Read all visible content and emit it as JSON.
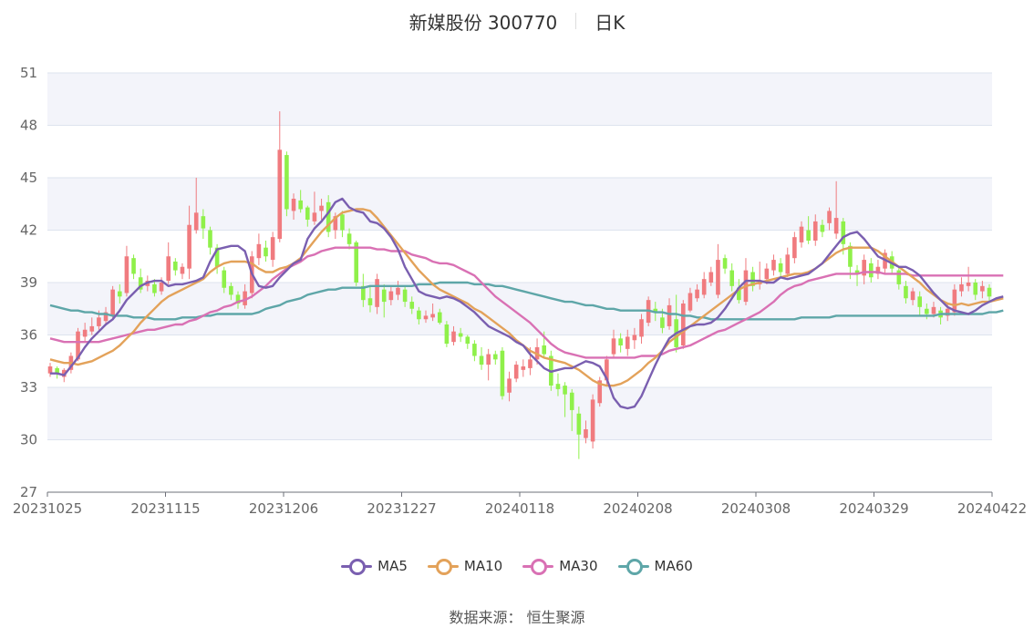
{
  "title": "新媒股份 300770",
  "subtitle": "日K",
  "source_label": "数据来源： 恒生聚源",
  "colors": {
    "up": "#f07b7f",
    "down": "#8ff04a",
    "MA5": "#7a5fb0",
    "MA10": "#e3a25a",
    "MA30": "#d971b4",
    "MA60": "#5ea6a8",
    "band": "#f3f4fa",
    "grid": "#dde3ee"
  },
  "chart_data": {
    "type": "candlestick",
    "y_ticks": [
      "51",
      "48",
      "45",
      "42",
      "39",
      "36",
      "33",
      "30",
      "27"
    ],
    "ylim": [
      27,
      51
    ],
    "x_tick_labels": [
      "20231025",
      "20231115",
      "20231206",
      "20231227",
      "20240118",
      "20240208",
      "20240308",
      "20240329",
      "20240422"
    ],
    "legend": [
      "MA5",
      "MA10",
      "MA30",
      "MA60"
    ],
    "candles": [
      [
        33.8,
        34.2,
        34.4,
        33.6
      ],
      [
        34.1,
        33.8,
        34.2,
        33.5
      ],
      [
        33.6,
        34.0,
        34.1,
        33.3
      ],
      [
        34.0,
        34.8,
        35.0,
        33.8
      ],
      [
        34.6,
        36.2,
        36.4,
        34.5
      ],
      [
        35.9,
        36.3,
        36.7,
        35.6
      ],
      [
        36.2,
        36.5,
        37.0,
        36.0
      ],
      [
        36.5,
        37.0,
        37.4,
        36.3
      ],
      [
        36.8,
        37.3,
        37.6,
        36.6
      ],
      [
        37.1,
        38.6,
        38.8,
        36.9
      ],
      [
        38.5,
        38.2,
        38.9,
        37.8
      ],
      [
        38.4,
        40.5,
        41.1,
        38.2
      ],
      [
        40.4,
        39.5,
        40.6,
        39.2
      ],
      [
        39.3,
        38.6,
        39.8,
        38.4
      ],
      [
        38.8,
        39.1,
        39.4,
        38.5
      ],
      [
        38.9,
        38.4,
        39.2,
        38.2
      ],
      [
        38.5,
        39.0,
        39.3,
        38.3
      ],
      [
        39.1,
        40.5,
        41.3,
        38.9
      ],
      [
        40.2,
        39.7,
        40.4,
        39.4
      ],
      [
        39.5,
        39.9,
        40.1,
        39.2
      ],
      [
        39.8,
        42.3,
        43.4,
        39.2
      ],
      [
        42.0,
        43.0,
        45.0,
        41.8
      ],
      [
        42.8,
        42.1,
        43.2,
        41.5
      ],
      [
        42.0,
        41.0,
        42.2,
        40.6
      ],
      [
        41.0,
        39.9,
        41.2,
        39.5
      ],
      [
        39.7,
        38.7,
        39.9,
        38.4
      ],
      [
        38.8,
        38.3,
        39.0,
        38.0
      ],
      [
        38.3,
        37.8,
        38.5,
        37.5
      ],
      [
        37.7,
        38.5,
        38.9,
        37.5
      ],
      [
        38.4,
        40.5,
        40.8,
        38.1
      ],
      [
        40.4,
        41.2,
        41.8,
        40.0
      ],
      [
        41.0,
        40.5,
        41.4,
        40.2
      ],
      [
        40.3,
        41.6,
        41.9,
        39.9
      ],
      [
        41.5,
        46.6,
        48.8,
        41.3
      ],
      [
        46.3,
        43.2,
        46.5,
        42.8
      ],
      [
        43.1,
        43.8,
        44.1,
        42.6
      ],
      [
        43.7,
        43.2,
        44.3,
        43.0
      ],
      [
        43.3,
        42.6,
        43.4,
        42.2
      ],
      [
        42.5,
        43.0,
        44.2,
        42.3
      ],
      [
        43.1,
        43.4,
        43.8,
        42.6
      ],
      [
        43.6,
        41.9,
        44.0,
        41.6
      ],
      [
        42.0,
        42.8,
        43.0,
        41.5
      ],
      [
        42.9,
        42.0,
        43.1,
        41.6
      ],
      [
        41.8,
        41.2,
        42.1,
        40.9
      ],
      [
        41.3,
        39.0,
        41.4,
        38.8
      ],
      [
        38.8,
        38.0,
        39.5,
        37.6
      ],
      [
        38.1,
        37.7,
        38.8,
        37.3
      ],
      [
        37.6,
        39.2,
        39.5,
        37.2
      ],
      [
        38.6,
        37.9,
        38.9,
        37.0
      ],
      [
        38.0,
        38.5,
        38.8,
        37.7
      ],
      [
        38.3,
        38.7,
        39.1,
        38.0
      ],
      [
        38.6,
        37.9,
        38.8,
        37.6
      ],
      [
        37.9,
        37.5,
        38.2,
        37.2
      ],
      [
        37.4,
        36.9,
        37.6,
        36.6
      ],
      [
        36.9,
        37.1,
        37.4,
        36.7
      ],
      [
        37.0,
        37.2,
        37.8,
        36.8
      ],
      [
        37.3,
        36.7,
        37.5,
        36.6
      ],
      [
        36.6,
        35.5,
        36.8,
        35.3
      ],
      [
        35.6,
        36.2,
        36.5,
        35.4
      ],
      [
        36.1,
        35.9,
        36.4,
        35.6
      ],
      [
        35.9,
        35.5,
        36.0,
        35.2
      ],
      [
        35.5,
        34.8,
        35.7,
        34.5
      ],
      [
        34.8,
        34.3,
        35.3,
        34.0
      ],
      [
        34.3,
        34.9,
        35.2,
        33.4
      ],
      [
        34.9,
        34.6,
        35.1,
        34.3
      ],
      [
        35.1,
        32.5,
        35.3,
        32.3
      ],
      [
        32.7,
        33.5,
        33.9,
        32.2
      ],
      [
        33.5,
        34.3,
        34.5,
        33.3
      ],
      [
        34.0,
        34.2,
        34.6,
        33.6
      ],
      [
        34.1,
        34.6,
        35.3,
        33.7
      ],
      [
        34.6,
        35.3,
        35.8,
        34.3
      ],
      [
        35.4,
        34.9,
        36.2,
        34.7
      ],
      [
        34.8,
        33.1,
        35.1,
        32.8
      ],
      [
        33.2,
        32.9,
        33.8,
        32.5
      ],
      [
        33.1,
        32.6,
        33.3,
        31.3
      ],
      [
        32.7,
        31.7,
        32.9,
        30.5
      ],
      [
        31.5,
        30.3,
        31.9,
        28.9
      ],
      [
        30.1,
        30.6,
        31.1,
        29.8
      ],
      [
        29.9,
        32.3,
        32.6,
        29.5
      ],
      [
        32.1,
        33.4,
        33.6,
        31.9
      ],
      [
        33.4,
        34.6,
        34.8,
        33.1
      ],
      [
        34.9,
        35.8,
        36.3,
        34.7
      ],
      [
        35.8,
        35.4,
        36.1,
        35.0
      ],
      [
        35.2,
        35.9,
        36.3,
        34.8
      ],
      [
        35.7,
        36.0,
        36.4,
        35.2
      ],
      [
        35.9,
        36.9,
        37.2,
        35.5
      ],
      [
        36.7,
        38.0,
        38.2,
        36.5
      ],
      [
        37.5,
        37.3,
        37.9,
        36.8
      ],
      [
        37.0,
        36.4,
        37.5,
        36.1
      ],
      [
        36.5,
        37.7,
        38.1,
        36.3
      ],
      [
        36.9,
        35.3,
        38.3,
        35.0
      ],
      [
        35.4,
        37.8,
        38.0,
        35.2
      ],
      [
        37.4,
        38.4,
        38.7,
        37.3
      ],
      [
        38.1,
        38.6,
        38.9,
        37.9
      ],
      [
        38.3,
        39.2,
        39.6,
        38.1
      ],
      [
        39.0,
        39.6,
        39.9,
        38.8
      ],
      [
        38.3,
        40.3,
        41.2,
        38.1
      ],
      [
        40.4,
        39.8,
        40.6,
        39.5
      ],
      [
        39.7,
        38.8,
        40.1,
        38.5
      ],
      [
        38.7,
        38.0,
        39.2,
        37.8
      ],
      [
        37.9,
        39.7,
        40.4,
        37.7
      ],
      [
        39.6,
        38.8,
        39.9,
        38.5
      ],
      [
        38.9,
        39.1,
        40.2,
        38.6
      ],
      [
        39.2,
        39.8,
        40.1,
        38.9
      ],
      [
        39.7,
        40.3,
        40.6,
        39.4
      ],
      [
        40.1,
        39.6,
        40.4,
        39.3
      ],
      [
        39.5,
        40.6,
        41.0,
        39.3
      ],
      [
        40.4,
        41.6,
        41.9,
        40.1
      ],
      [
        41.3,
        42.2,
        42.5,
        41.0
      ],
      [
        42.0,
        41.4,
        42.8,
        41.2
      ],
      [
        41.4,
        42.5,
        42.9,
        41.1
      ],
      [
        42.3,
        41.9,
        42.6,
        41.6
      ],
      [
        42.4,
        43.1,
        43.3,
        42.0
      ],
      [
        41.8,
        42.7,
        44.8,
        41.5
      ],
      [
        42.5,
        41.2,
        42.7,
        40.6
      ],
      [
        41.1,
        39.9,
        41.3,
        39.2
      ],
      [
        39.7,
        39.5,
        40.0,
        38.8
      ],
      [
        39.4,
        40.3,
        40.6,
        38.9
      ],
      [
        40.1,
        39.3,
        40.4,
        39.0
      ],
      [
        39.5,
        39.9,
        40.3,
        39.2
      ],
      [
        39.8,
        40.7,
        40.9,
        39.5
      ],
      [
        40.5,
        39.8,
        40.8,
        39.5
      ],
      [
        39.7,
        38.9,
        39.9,
        38.6
      ],
      [
        38.8,
        38.1,
        39.1,
        37.8
      ],
      [
        38.0,
        38.5,
        38.7,
        37.7
      ],
      [
        38.2,
        37.6,
        38.5,
        37.1
      ],
      [
        37.5,
        37.2,
        37.8,
        36.9
      ],
      [
        37.2,
        37.6,
        37.9,
        37.0
      ],
      [
        37.4,
        37.0,
        37.6,
        36.6
      ],
      [
        37.1,
        37.5,
        37.8,
        36.8
      ],
      [
        37.3,
        38.6,
        38.9,
        37.1
      ],
      [
        38.5,
        38.9,
        39.3,
        38.2
      ],
      [
        38.8,
        39.0,
        39.9,
        38.5
      ],
      [
        39.0,
        38.3,
        39.2,
        38.0
      ],
      [
        38.5,
        38.8,
        39.1,
        38.1
      ],
      [
        38.7,
        38.2,
        38.9,
        37.9
      ]
    ],
    "MA5": [
      33.8,
      33.8,
      33.7,
      34.2,
      34.7,
      35.3,
      35.8,
      36.2,
      36.6,
      36.9,
      37.4,
      38.0,
      38.4,
      38.8,
      39.0,
      39.1,
      39.1,
      38.8,
      38.9,
      38.9,
      39.0,
      39.1,
      39.3,
      40.2,
      40.9,
      41.0,
      41.1,
      41.1,
      40.8,
      39.5,
      38.8,
      38.7,
      38.8,
      39.3,
      39.7,
      40.1,
      40.3,
      41.5,
      42.1,
      42.5,
      43.0,
      43.6,
      43.8,
      43.3,
      43.1,
      43.0,
      42.5,
      42.4,
      42.1,
      41.6,
      40.9,
      39.9,
      39.2,
      38.5,
      38.3,
      38.2,
      38.1,
      38.2,
      38.1,
      37.9,
      37.6,
      37.3,
      36.9,
      36.5,
      36.3,
      36.1,
      35.9,
      35.6,
      35.4,
      34.9,
      34.5,
      34.1,
      33.9,
      34.0,
      34.1,
      34.1,
      34.3,
      34.5,
      34.4,
      34.2,
      33.5,
      32.4,
      31.9,
      31.8,
      31.9,
      32.5,
      33.4,
      34.3,
      35.1,
      35.8,
      36.1,
      36.3,
      36.5,
      36.6,
      36.6,
      36.7,
      37.0,
      37.5,
      38.1,
      38.7,
      39.1,
      39.1,
      39.1,
      39.0,
      39.0,
      39.3,
      39.2,
      39.3,
      39.4,
      39.5,
      39.8,
      40.1,
      40.6,
      41.1,
      41.6,
      41.8,
      41.9,
      41.5,
      41.0,
      40.5,
      40.3,
      40.1,
      39.9,
      39.9,
      39.7,
      39.4,
      38.9,
      38.4,
      38.0,
      37.6,
      37.4,
      37.3,
      37.2,
      37.4,
      37.7,
      37.9,
      38.1,
      38.2
    ],
    "MA10": [
      34.6,
      34.5,
      34.4,
      34.4,
      34.3,
      34.4,
      34.5,
      34.7,
      34.9,
      35.1,
      35.4,
      35.8,
      36.2,
      36.7,
      37.1,
      37.5,
      37.9,
      38.2,
      38.4,
      38.6,
      38.8,
      39.0,
      39.2,
      39.6,
      39.9,
      40.1,
      40.2,
      40.2,
      40.2,
      40.1,
      39.8,
      39.6,
      39.6,
      39.8,
      39.9,
      40.1,
      40.4,
      40.9,
      41.4,
      41.9,
      42.3,
      42.7,
      43.0,
      43.1,
      43.2,
      43.2,
      43.1,
      42.7,
      42.2,
      41.7,
      41.2,
      40.7,
      40.2,
      39.7,
      39.3,
      38.9,
      38.6,
      38.4,
      38.2,
      38.0,
      37.8,
      37.5,
      37.3,
      37.0,
      36.7,
      36.4,
      36.1,
      35.7,
      35.4,
      35.1,
      34.9,
      34.7,
      34.6,
      34.5,
      34.4,
      34.2,
      34.0,
      33.7,
      33.4,
      33.2,
      33.1,
      33.1,
      33.2,
      33.4,
      33.7,
      34.0,
      34.4,
      34.7,
      35.1,
      35.6,
      35.9,
      36.2,
      36.5,
      36.8,
      37.1,
      37.4,
      37.7,
      38.0,
      38.3,
      38.6,
      38.8,
      38.9,
      39.0,
      39.1,
      39.2,
      39.3,
      39.4,
      39.5,
      39.5,
      39.6,
      39.8,
      40.1,
      40.4,
      40.7,
      40.9,
      41.0,
      41.0,
      41.0,
      41.0,
      40.8,
      40.5,
      40.2,
      39.9,
      39.6,
      39.3,
      39.0,
      38.6,
      38.3,
      38.0,
      37.8,
      37.7,
      37.8,
      37.7,
      37.8,
      37.9,
      37.9,
      38.0,
      38.1
    ],
    "MA30": [
      35.8,
      35.7,
      35.6,
      35.6,
      35.6,
      35.6,
      35.6,
      35.6,
      35.7,
      35.8,
      35.9,
      36.0,
      36.1,
      36.2,
      36.3,
      36.3,
      36.4,
      36.5,
      36.6,
      36.6,
      36.8,
      36.9,
      37.1,
      37.3,
      37.4,
      37.6,
      37.7,
      37.9,
      38.0,
      38.2,
      38.5,
      38.8,
      39.2,
      39.5,
      39.8,
      40.0,
      40.2,
      40.5,
      40.6,
      40.8,
      40.9,
      41.0,
      41.0,
      41.0,
      41.0,
      41.0,
      41.0,
      40.9,
      40.9,
      40.8,
      40.8,
      40.8,
      40.6,
      40.5,
      40.4,
      40.2,
      40.1,
      40.1,
      40.0,
      39.8,
      39.6,
      39.4,
      39.0,
      38.6,
      38.2,
      37.9,
      37.6,
      37.3,
      37.0,
      36.7,
      36.3,
      35.9,
      35.5,
      35.2,
      35.0,
      34.9,
      34.8,
      34.7,
      34.7,
      34.7,
      34.7,
      34.7,
      34.7,
      34.7,
      34.7,
      34.8,
      34.8,
      34.8,
      34.9,
      35.1,
      35.2,
      35.3,
      35.4,
      35.6,
      35.8,
      36.0,
      36.2,
      36.3,
      36.5,
      36.7,
      36.9,
      37.1,
      37.3,
      37.6,
      37.9,
      38.3,
      38.6,
      38.8,
      38.9,
      39.1,
      39.2,
      39.3,
      39.4,
      39.5,
      39.5,
      39.5,
      39.5,
      39.6,
      39.6,
      39.6,
      39.5,
      39.5,
      39.5,
      39.5,
      39.4,
      39.4,
      39.4,
      39.4,
      39.4,
      39.4,
      39.4,
      39.4,
      39.4,
      39.4,
      39.4,
      39.4,
      39.4,
      39.4
    ],
    "MA60": [
      37.7,
      37.6,
      37.5,
      37.4,
      37.4,
      37.3,
      37.3,
      37.2,
      37.2,
      37.1,
      37.1,
      37.1,
      37.0,
      37.0,
      37.0,
      36.9,
      36.9,
      36.9,
      36.9,
      37.0,
      37.0,
      37.0,
      37.1,
      37.1,
      37.2,
      37.2,
      37.2,
      37.2,
      37.2,
      37.2,
      37.3,
      37.5,
      37.6,
      37.7,
      37.9,
      38.0,
      38.1,
      38.3,
      38.4,
      38.5,
      38.6,
      38.6,
      38.7,
      38.7,
      38.7,
      38.7,
      38.8,
      38.8,
      38.8,
      38.8,
      38.8,
      38.8,
      38.8,
      38.9,
      38.9,
      38.9,
      39.0,
      39.0,
      39.0,
      39.0,
      39.0,
      38.9,
      38.9,
      38.9,
      38.8,
      38.8,
      38.7,
      38.6,
      38.5,
      38.4,
      38.3,
      38.2,
      38.1,
      38.0,
      37.9,
      37.9,
      37.8,
      37.7,
      37.7,
      37.6,
      37.5,
      37.5,
      37.4,
      37.4,
      37.4,
      37.4,
      37.4,
      37.3,
      37.3,
      37.2,
      37.2,
      37.1,
      37.1,
      37.0,
      37.0,
      36.9,
      36.9,
      36.9,
      36.9,
      36.9,
      36.9,
      36.9,
      36.9,
      36.9,
      36.9,
      36.9,
      36.9,
      36.9,
      37.0,
      37.0,
      37.0,
      37.0,
      37.0,
      37.1,
      37.1,
      37.1,
      37.1,
      37.1,
      37.1,
      37.1,
      37.1,
      37.1,
      37.1,
      37.1,
      37.1,
      37.1,
      37.1,
      37.1,
      37.2,
      37.2,
      37.2,
      37.2,
      37.2,
      37.2,
      37.2,
      37.3,
      37.3,
      37.4
    ]
  }
}
